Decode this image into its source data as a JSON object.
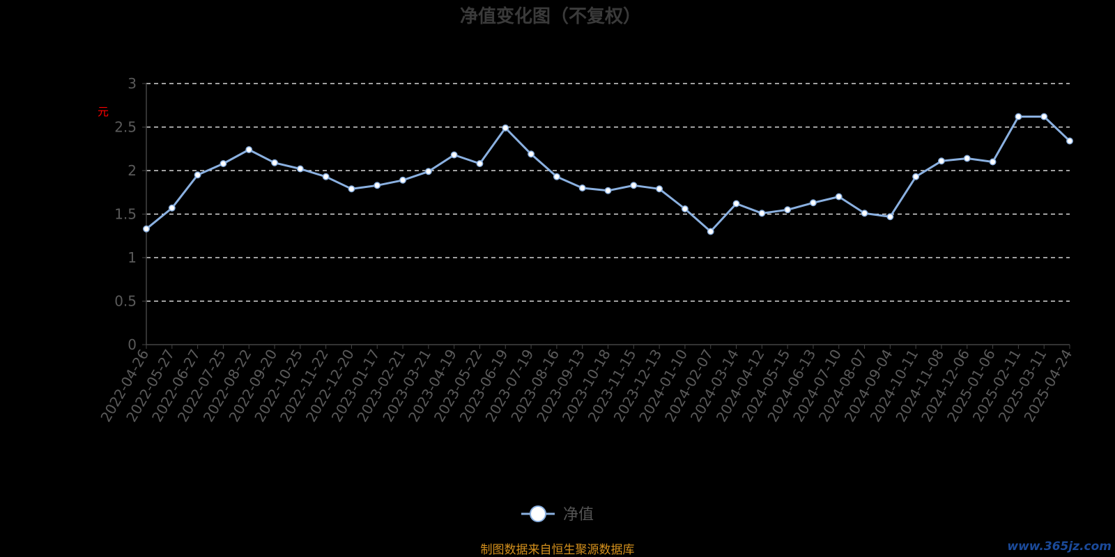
{
  "chart_data": {
    "type": "line",
    "title": "净值变化图（不复权）",
    "ylabel": "元",
    "ylim": [
      0,
      3
    ],
    "yticks": [
      "0",
      "0.5",
      "1",
      "1.5",
      "2",
      "2.5",
      "3"
    ],
    "grid": true,
    "legend_position": "bottom-center",
    "series": [
      {
        "name": "净值",
        "color": "#8ab0e0",
        "x": [
          "2022-04-26",
          "2022-05-27",
          "2022-06-27",
          "2022-07-25",
          "2022-08-22",
          "2022-09-20",
          "2022-10-25",
          "2022-11-22",
          "2022-12-20",
          "2023-01-17",
          "2023-02-21",
          "2023-03-21",
          "2023-04-19",
          "2023-05-22",
          "2023-06-19",
          "2023-07-19",
          "2023-08-16",
          "2023-09-13",
          "2023-10-18",
          "2023-11-15",
          "2023-12-13",
          "2024-01-10",
          "2024-02-07",
          "2024-03-14",
          "2024-04-12",
          "2024-05-15",
          "2024-06-13",
          "2024-07-10",
          "2024-08-07",
          "2024-09-04",
          "2024-10-11",
          "2024-11-08",
          "2024-12-06",
          "2025-01-06",
          "2025-02-11",
          "2025-03-11",
          "2025-04-24"
        ],
        "values": [
          1.33,
          1.57,
          1.95,
          2.08,
          2.24,
          2.09,
          2.02,
          1.93,
          1.79,
          1.83,
          1.89,
          1.99,
          2.18,
          2.08,
          2.49,
          2.19,
          1.93,
          1.8,
          1.77,
          1.83,
          1.79,
          1.56,
          1.3,
          1.62,
          1.51,
          1.55,
          1.63,
          1.7,
          1.51,
          1.47,
          1.93,
          2.11,
          2.14,
          2.1,
          2.62,
          2.62,
          2.34
        ]
      }
    ]
  },
  "source": "制图数据来自恒生聚源数据库",
  "watermark": "www.365jz.com"
}
